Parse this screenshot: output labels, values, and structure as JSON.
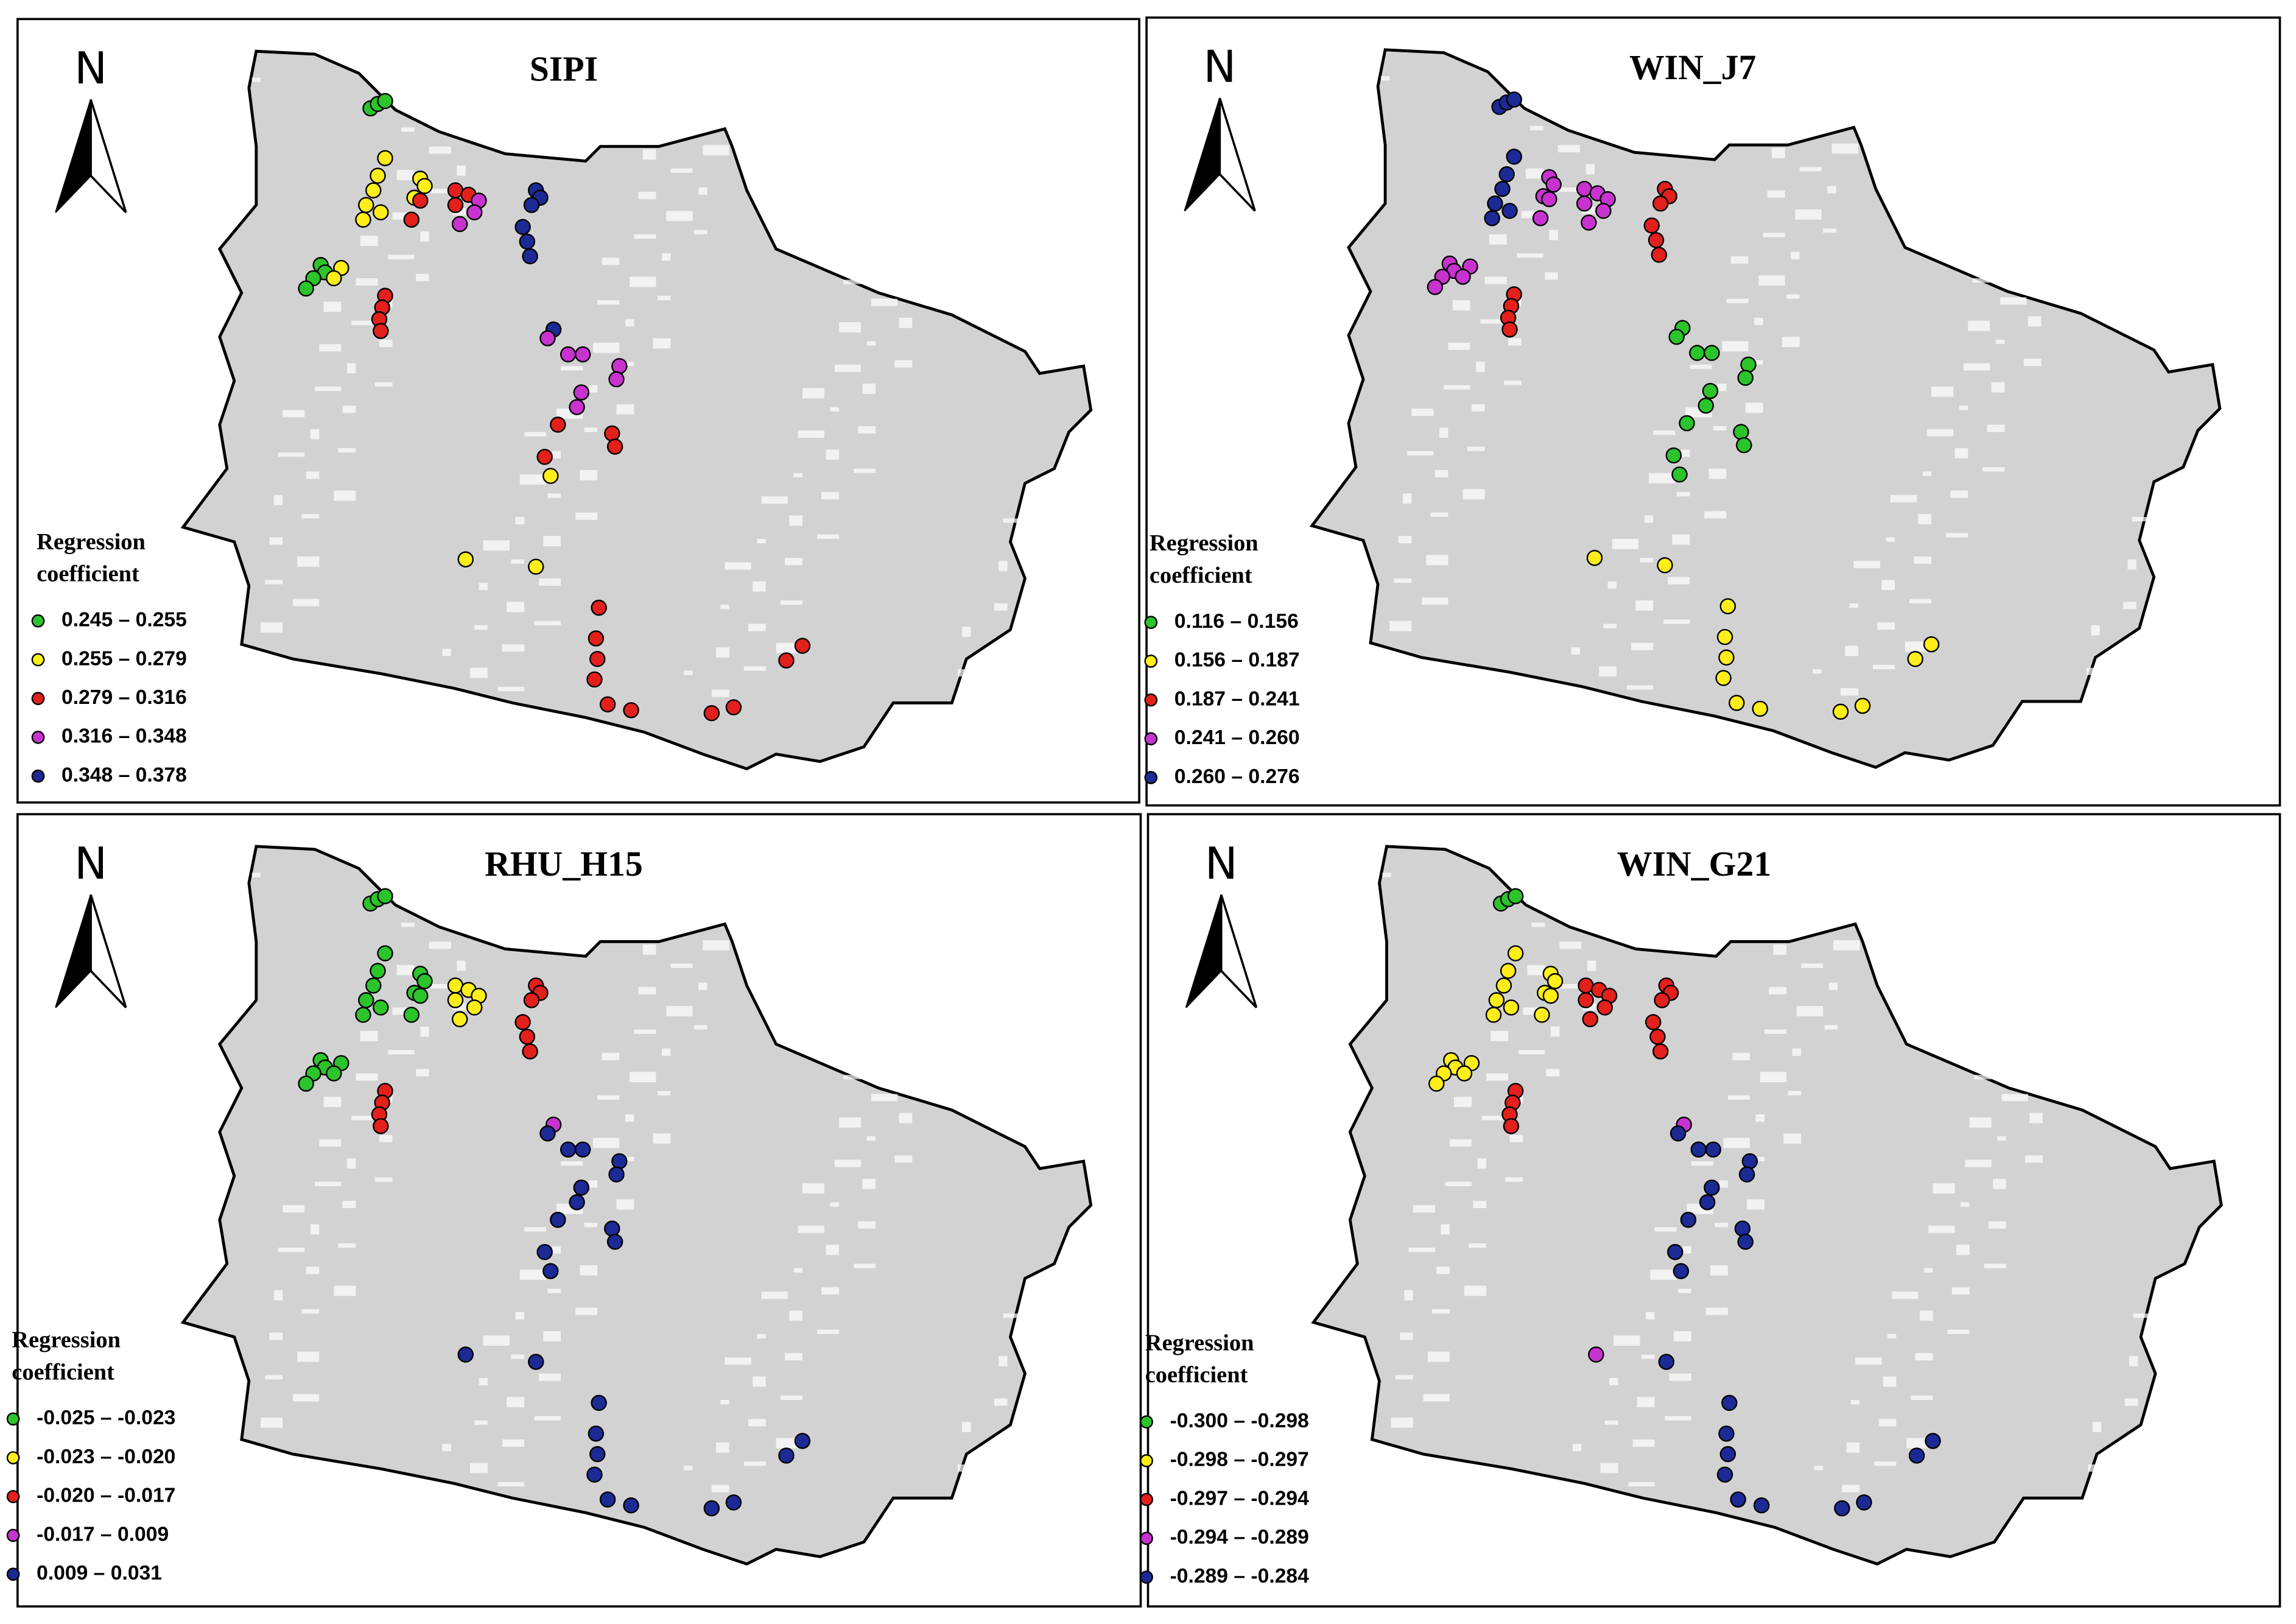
{
  "north": "N",
  "legend_title": [
    "Regression",
    "coefficient"
  ],
  "panels": [
    {
      "title": "SIPI",
      "legend": [
        {
          "label": "0.245 – 0.255",
          "color": "#2bc42b"
        },
        {
          "label": "0.255 – 0.279",
          "color": "#ffee1a"
        },
        {
          "label": "0.279 – 0.316",
          "color": "#e3201c"
        },
        {
          "label": "0.316 – 0.348",
          "color": "#c833d0"
        },
        {
          "label": "0.348 – 0.378",
          "color": "#1c2a96"
        }
      ]
    },
    {
      "title": "WIN_J7",
      "legend": [
        {
          "label": "0.116 – 0.156",
          "color": "#2bc42b"
        },
        {
          "label": "0.156 – 0.187",
          "color": "#ffee1a"
        },
        {
          "label": "0.187 – 0.241",
          "color": "#e3201c"
        },
        {
          "label": "0.241 – 0.260",
          "color": "#c833d0"
        },
        {
          "label": "0.260 – 0.276",
          "color": "#1c2a96"
        }
      ]
    },
    {
      "title": "RHU_H15",
      "legend": [
        {
          "label": "-0.025 – -0.023",
          "color": "#2bc42b"
        },
        {
          "label": "-0.023 – -0.020",
          "color": "#ffee1a"
        },
        {
          "label": "-0.020 – -0.017",
          "color": "#e3201c"
        },
        {
          "label": "-0.017 – 0.009",
          "color": "#c833d0"
        },
        {
          "label": "0.009 – 0.031",
          "color": "#1c2a96"
        }
      ]
    },
    {
      "title": "WIN_G21",
      "legend": [
        {
          "label": "-0.300 – -0.298",
          "color": "#2bc42b"
        },
        {
          "label": "-0.298 – -0.297",
          "color": "#ffee1a"
        },
        {
          "label": "-0.297 – -0.294",
          "color": "#e3201c"
        },
        {
          "label": "-0.294 – -0.289",
          "color": "#c833d0"
        },
        {
          "label": "-0.289 – -0.284",
          "color": "#1c2a96"
        }
      ]
    }
  ]
}
